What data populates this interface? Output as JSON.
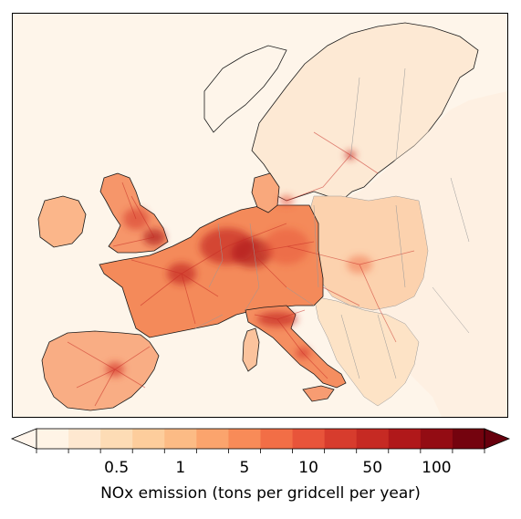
{
  "map": {
    "region": "Europe",
    "quantity": "NOx emission",
    "colors": {
      "background": "#fef5ea",
      "coastline": "#1a1a1a",
      "border": "#999999",
      "very_high": "#67000d",
      "high": "#bd1e1a",
      "mid": "#e8543a",
      "low": "#f9a06e",
      "very_low": "#fddbb8"
    }
  },
  "colorbar": {
    "label": "NOx emission (tons per gridcell per year)",
    "ticks": [
      "0.5",
      "1",
      "5",
      "10",
      "50",
      "100"
    ],
    "extend": "both",
    "colors": [
      "#fff4e6",
      "#fee8d0",
      "#fddcb5",
      "#fdcd9c",
      "#fcbb85",
      "#fba46d",
      "#f88b58",
      "#f26e46",
      "#e8543a",
      "#d73c2d",
      "#c62a23",
      "#b0181a",
      "#930c13",
      "#74030e"
    ],
    "under_color": "#fff5eb",
    "over_color": "#67000d"
  }
}
